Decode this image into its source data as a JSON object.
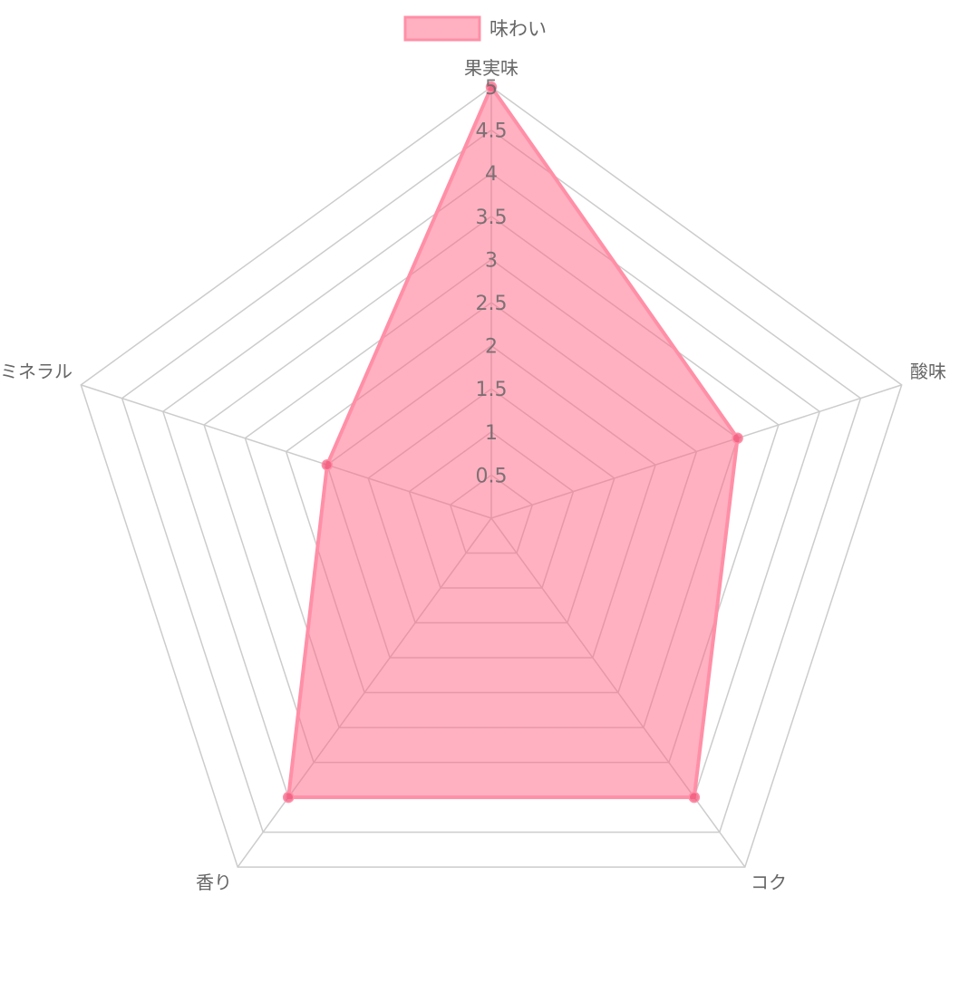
{
  "chart_data": {
    "type": "radar",
    "categories": [
      "果実味",
      "酸味",
      "コク",
      "香り",
      "ミネラル"
    ],
    "series": [
      {
        "name": "味わい",
        "values": [
          5,
          3,
          4,
          4,
          2
        ]
      }
    ],
    "r_range": [
      0,
      5
    ],
    "ticks": [
      "0.5",
      "1",
      "1.5",
      "2",
      "2.5",
      "3",
      "3.5",
      "4",
      "4.5",
      "5"
    ],
    "legend_position": "top",
    "grid": true,
    "colors": {
      "fill": "#ff6384",
      "border": "#ff8fa7",
      "point": "#f0557a",
      "grid": "#cccccc",
      "label": "#666666"
    }
  }
}
